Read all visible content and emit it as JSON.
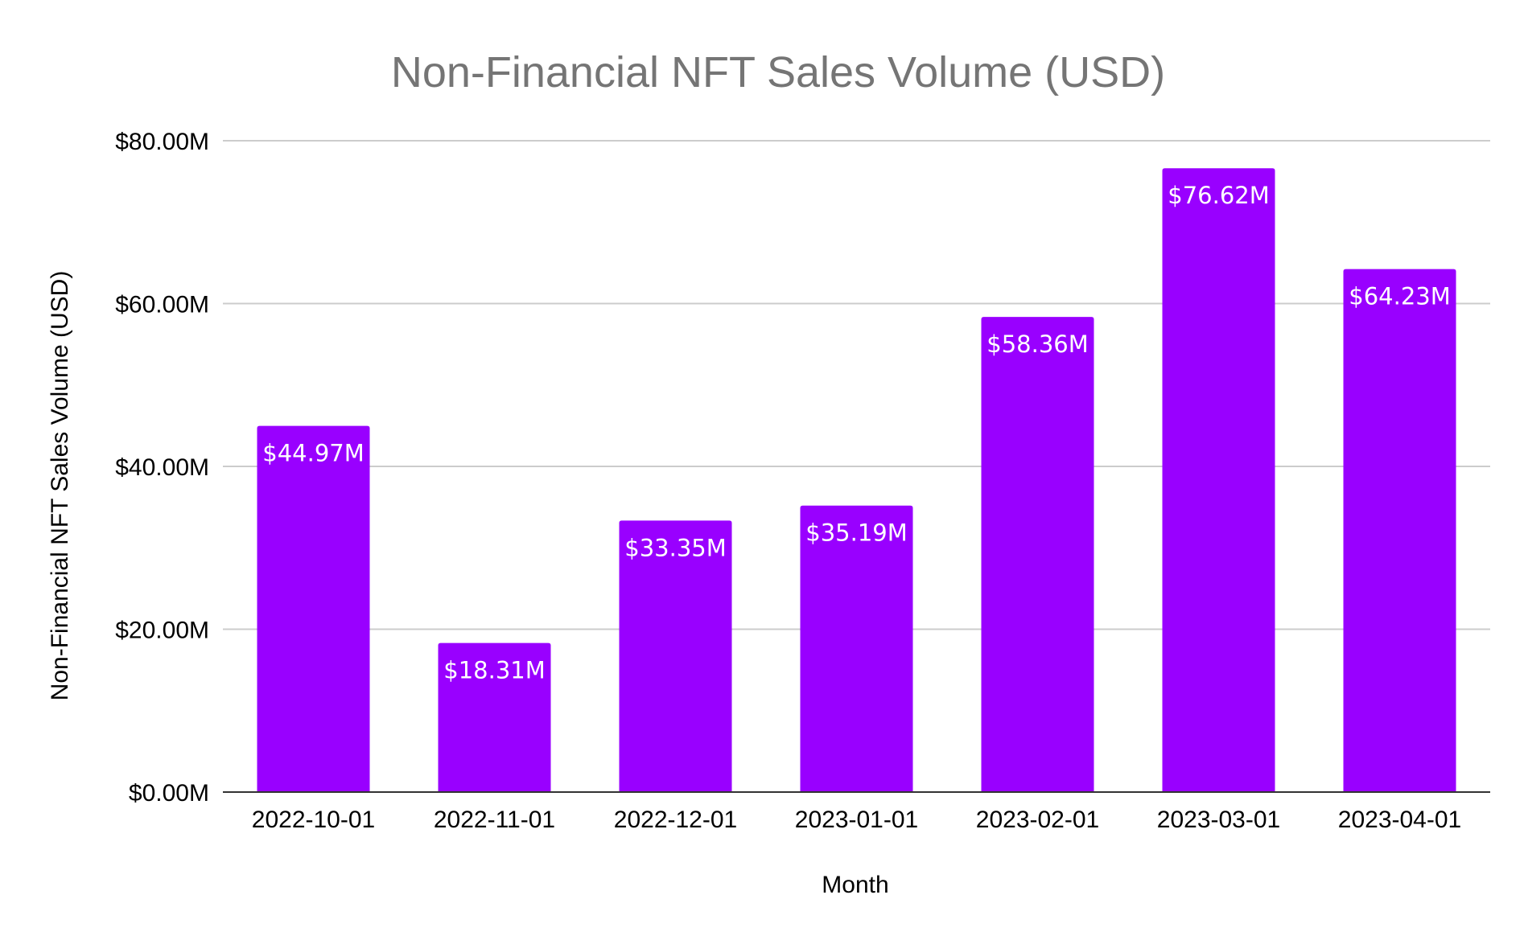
{
  "colors": {
    "bar": "#9900ff",
    "grid": "#cccccc",
    "axis": "#333333",
    "title": "#757575",
    "label": "#ffffff"
  },
  "chart_data": {
    "type": "bar",
    "title": "Non-Financial NFT Sales Volume (USD)",
    "xlabel": "Month",
    "ylabel": "Non-Financial NFT Sales Volume (USD)",
    "categories": [
      "2022-10-01",
      "2022-11-01",
      "2022-12-01",
      "2023-01-01",
      "2023-02-01",
      "2023-03-01",
      "2023-04-01"
    ],
    "values": [
      44.97,
      18.31,
      33.35,
      35.19,
      58.36,
      76.62,
      64.23
    ],
    "value_labels": [
      "$44.97M",
      "$18.31M",
      "$33.35M",
      "$35.19M",
      "$58.36M",
      "$76.62M",
      "$64.23M"
    ],
    "ylim": [
      0,
      80
    ],
    "yticks": [
      0,
      20,
      40,
      60,
      80
    ],
    "ytick_labels": [
      "$0.00M",
      "$20.00M",
      "$40.00M",
      "$60.00M",
      "$80.00M"
    ],
    "grid": true,
    "legend": "none"
  }
}
